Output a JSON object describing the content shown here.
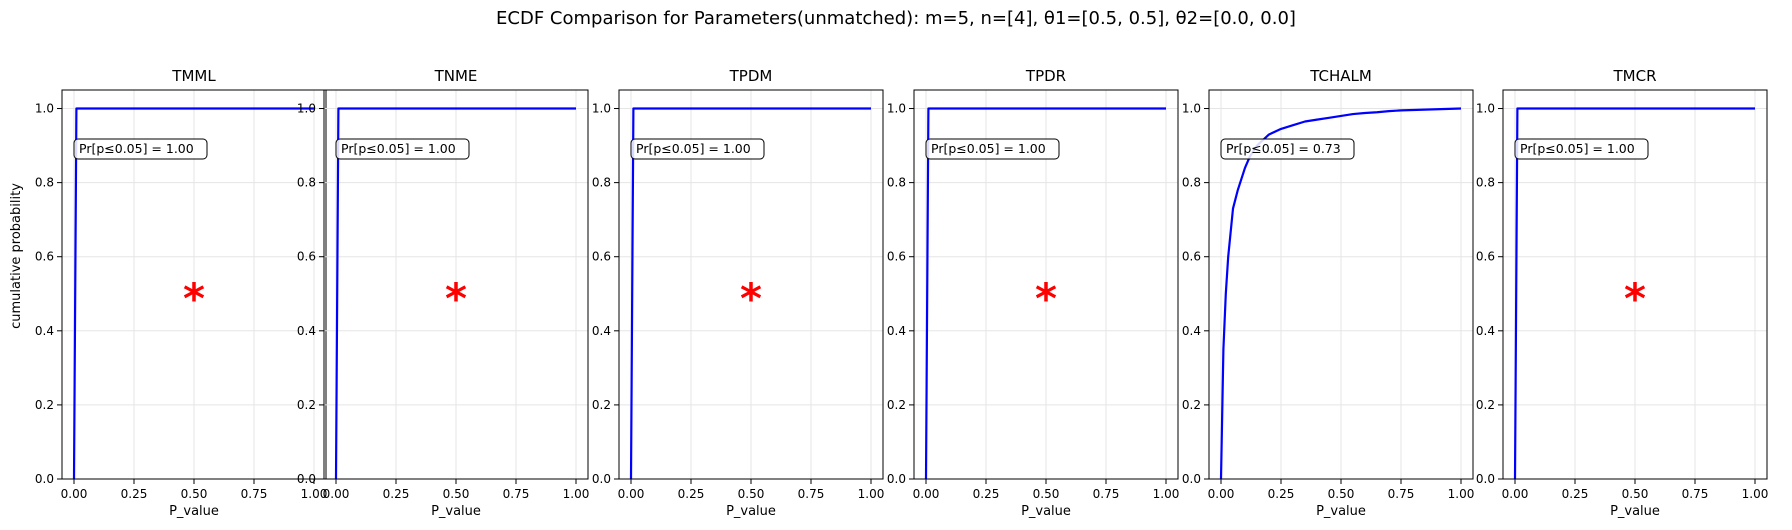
{
  "figure": {
    "title": "ECDF Comparison for Parameters(unmatched): m=5, n=[4], θ1=[0.5, 0.5], θ2=[0.0, 0.0]",
    "shared_ylabel": "cumulative probability",
    "colors": {
      "ecdf_line": "#0000ff",
      "star_marker": "#ff0000",
      "grid": "#e5e5e5"
    }
  },
  "chart_data": [
    {
      "type": "line",
      "title": "TMML",
      "xlabel": "P_value",
      "ylabel": "cumulative probability",
      "xlim": [
        -0.05,
        1.05
      ],
      "ylim": [
        0,
        1.05
      ],
      "xticks": [
        "0.00",
        "0.25",
        "0.50",
        "0.75",
        "1.00"
      ],
      "yticks": [
        "0.0",
        "0.2",
        "0.4",
        "0.6",
        "0.8",
        "1.0"
      ],
      "grid": true,
      "annotation": "Pr[p≤0.05] = 1.00",
      "marker": {
        "symbol": "*",
        "x": 0.5,
        "y": 0.5
      },
      "series": [
        {
          "x": [
            0.0,
            0.01,
            1.0
          ],
          "y": [
            0.0,
            1.0,
            1.0
          ]
        }
      ]
    },
    {
      "type": "line",
      "title": "TNME",
      "xlabel": "P_value",
      "ylabel": "",
      "xlim": [
        -0.05,
        1.05
      ],
      "ylim": [
        0,
        1.05
      ],
      "xticks": [
        "0.00",
        "0.25",
        "0.50",
        "0.75",
        "1.00"
      ],
      "yticks": [
        "0.0",
        "0.2",
        "0.4",
        "0.6",
        "0.8",
        "1.0"
      ],
      "grid": true,
      "annotation": "Pr[p≤0.05] = 1.00",
      "marker": {
        "symbol": "*",
        "x": 0.5,
        "y": 0.5
      },
      "series": [
        {
          "x": [
            0.0,
            0.01,
            1.0
          ],
          "y": [
            0.0,
            1.0,
            1.0
          ]
        }
      ]
    },
    {
      "type": "line",
      "title": "TPDM",
      "xlabel": "P_value",
      "ylabel": "",
      "xlim": [
        -0.05,
        1.05
      ],
      "ylim": [
        0,
        1.05
      ],
      "xticks": [
        "0.00",
        "0.25",
        "0.50",
        "0.75",
        "1.00"
      ],
      "yticks": [
        "0.0",
        "0.2",
        "0.4",
        "0.6",
        "0.8",
        "1.0"
      ],
      "grid": true,
      "annotation": "Pr[p≤0.05] = 1.00",
      "marker": {
        "symbol": "*",
        "x": 0.5,
        "y": 0.5
      },
      "series": [
        {
          "x": [
            0.0,
            0.01,
            1.0
          ],
          "y": [
            0.0,
            1.0,
            1.0
          ]
        }
      ]
    },
    {
      "type": "line",
      "title": "TPDR",
      "xlabel": "P_value",
      "ylabel": "",
      "xlim": [
        -0.05,
        1.05
      ],
      "ylim": [
        0,
        1.05
      ],
      "xticks": [
        "0.00",
        "0.25",
        "0.50",
        "0.75",
        "1.00"
      ],
      "yticks": [
        "0.0",
        "0.2",
        "0.4",
        "0.6",
        "0.8",
        "1.0"
      ],
      "grid": true,
      "annotation": "Pr[p≤0.05] = 1.00",
      "marker": {
        "symbol": "*",
        "x": 0.5,
        "y": 0.5
      },
      "series": [
        {
          "x": [
            0.0,
            0.01,
            1.0
          ],
          "y": [
            0.0,
            1.0,
            1.0
          ]
        }
      ]
    },
    {
      "type": "line",
      "title": "TCHALM",
      "xlabel": "P_value",
      "ylabel": "",
      "xlim": [
        -0.05,
        1.05
      ],
      "ylim": [
        0,
        1.05
      ],
      "xticks": [
        "0.00",
        "0.25",
        "0.50",
        "0.75",
        "1.00"
      ],
      "yticks": [
        "0.0",
        "0.2",
        "0.4",
        "0.6",
        "0.8",
        "1.0"
      ],
      "grid": true,
      "annotation": "Pr[p≤0.05] = 0.73",
      "marker": null,
      "series": [
        {
          "x": [
            0.0,
            0.01,
            0.02,
            0.03,
            0.05,
            0.07,
            0.1,
            0.12,
            0.15,
            0.2,
            0.25,
            0.3,
            0.35,
            0.4,
            0.45,
            0.5,
            0.55,
            0.6,
            0.65,
            0.7,
            0.75,
            0.8,
            0.85,
            0.9,
            0.95,
            1.0
          ],
          "y": [
            0.0,
            0.35,
            0.5,
            0.6,
            0.73,
            0.78,
            0.84,
            0.87,
            0.9,
            0.93,
            0.945,
            0.955,
            0.965,
            0.97,
            0.975,
            0.98,
            0.985,
            0.988,
            0.99,
            0.993,
            0.995,
            0.996,
            0.997,
            0.998,
            0.999,
            1.0
          ]
        }
      ]
    },
    {
      "type": "line",
      "title": "TMCR",
      "xlabel": "P_value",
      "ylabel": "",
      "xlim": [
        -0.05,
        1.05
      ],
      "ylim": [
        0,
        1.05
      ],
      "xticks": [
        "0.00",
        "0.25",
        "0.50",
        "0.75",
        "1.00"
      ],
      "yticks": [
        "0.0",
        "0.2",
        "0.4",
        "0.6",
        "0.8",
        "1.0"
      ],
      "grid": true,
      "annotation": "Pr[p≤0.05] = 1.00",
      "marker": {
        "symbol": "*",
        "x": 0.5,
        "y": 0.5
      },
      "series": [
        {
          "x": [
            0.0,
            0.01,
            1.0
          ],
          "y": [
            0.0,
            1.0,
            1.0
          ]
        }
      ]
    }
  ]
}
